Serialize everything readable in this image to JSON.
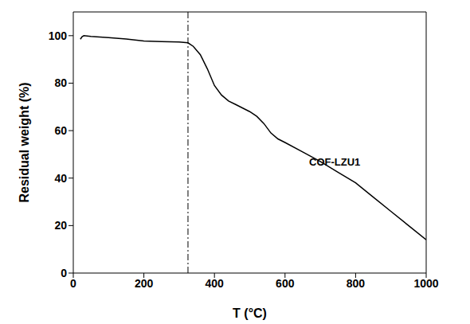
{
  "chart_data": {
    "type": "line",
    "x_label": "T (°C)",
    "y_label": "Residual weight (%)",
    "xlim": [
      0,
      1000
    ],
    "xticks": [
      0,
      200,
      400,
      600,
      800,
      1000
    ],
    "ylim": [
      0,
      110
    ],
    "yticks": [
      0,
      20,
      40,
      60,
      80,
      100
    ],
    "grid": false,
    "series": [
      {
        "name": "COF-LZU1",
        "color": "#000000",
        "line_style": "solid",
        "x": [
          20,
          25,
          30,
          50,
          100,
          150,
          200,
          250,
          300,
          325,
          340,
          360,
          380,
          400,
          420,
          440,
          460,
          480,
          500,
          520,
          540,
          560,
          580,
          600,
          650,
          700,
          750,
          800,
          850,
          900,
          950,
          1000
        ],
        "values": [
          98.5,
          99.6,
          100,
          99.7,
          99.2,
          98.6,
          97.8,
          97.5,
          97.3,
          97,
          95.5,
          92,
          86,
          79,
          75,
          72.5,
          71,
          69.5,
          68,
          66,
          63,
          59,
          56.5,
          55,
          51,
          47,
          42.5,
          38,
          32,
          26,
          20,
          14
        ]
      }
    ],
    "reference_lines": [
      {
        "x": 325,
        "color": "#000000",
        "line_style": "dashdot"
      }
    ]
  }
}
